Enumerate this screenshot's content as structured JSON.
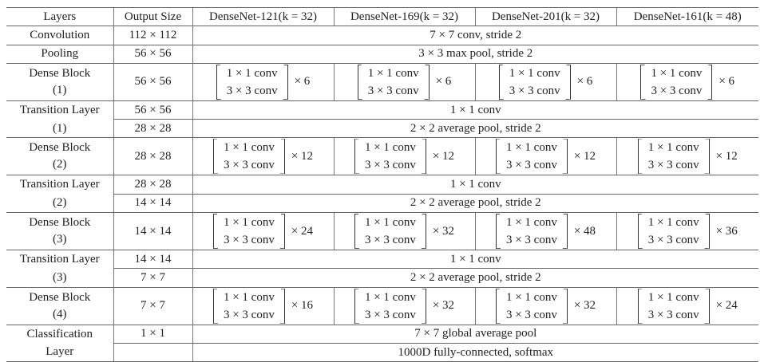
{
  "table": {
    "headers": [
      "Layers",
      "Output Size",
      "DenseNet-121(k = 32)",
      "DenseNet-169(k = 32)",
      "DenseNet-201(k = 32)",
      "DenseNet-161(k = 48)"
    ],
    "rows": [
      {
        "type": "span",
        "layer": [
          "Convolution"
        ],
        "output": "112 × 112",
        "value": "7 × 7 conv, stride 2"
      },
      {
        "type": "span",
        "layer": [
          "Pooling"
        ],
        "output": "56 × 56",
        "value": "3 × 3 max pool, stride 2"
      },
      {
        "type": "dense",
        "layer": [
          "Dense Block",
          "(1)"
        ],
        "output": "56 × 56",
        "block": [
          "1 × 1 conv",
          "3 × 3 conv"
        ],
        "multipliers": [
          "× 6",
          "× 6",
          "× 6",
          "× 6"
        ]
      },
      {
        "type": "pair",
        "layer": [
          "Transition Layer",
          "(1)"
        ],
        "sub": [
          {
            "output": "56 × 56",
            "value": "1 × 1 conv"
          },
          {
            "output": "28 × 28",
            "value": "2 × 2 average pool, stride 2"
          }
        ]
      },
      {
        "type": "dense",
        "layer": [
          "Dense Block",
          "(2)"
        ],
        "output": "28 × 28",
        "block": [
          "1 × 1 conv",
          "3 × 3 conv"
        ],
        "multipliers": [
          "× 12",
          "× 12",
          "× 12",
          "× 12"
        ]
      },
      {
        "type": "pair",
        "layer": [
          "Transition Layer",
          "(2)"
        ],
        "sub": [
          {
            "output": "28 × 28",
            "value": "1 × 1 conv"
          },
          {
            "output": "14 × 14",
            "value": "2 × 2 average pool, stride 2"
          }
        ]
      },
      {
        "type": "dense",
        "layer": [
          "Dense Block",
          "(3)"
        ],
        "output": "14 × 14",
        "block": [
          "1 × 1 conv",
          "3 × 3 conv"
        ],
        "multipliers": [
          "× 24",
          "× 32",
          "× 48",
          "× 36"
        ]
      },
      {
        "type": "pair",
        "layer": [
          "Transition Layer",
          "(3)"
        ],
        "sub": [
          {
            "output": "14 × 14",
            "value": "1 × 1 conv"
          },
          {
            "output": "7 × 7",
            "value": "2 × 2 average pool, stride 2"
          }
        ]
      },
      {
        "type": "dense",
        "layer": [
          "Dense Block",
          "(4)"
        ],
        "output": "7 × 7",
        "block": [
          "1 × 1 conv",
          "3 × 3 conv"
        ],
        "multipliers": [
          "× 16",
          "× 32",
          "× 32",
          "× 24"
        ]
      },
      {
        "type": "pair",
        "layer": [
          "Classification",
          "Layer"
        ],
        "sub": [
          {
            "output": "1 × 1",
            "value": "7 × 7 global average pool"
          },
          {
            "output": "",
            "value": "1000D fully-connected, softmax"
          }
        ]
      }
    ]
  }
}
